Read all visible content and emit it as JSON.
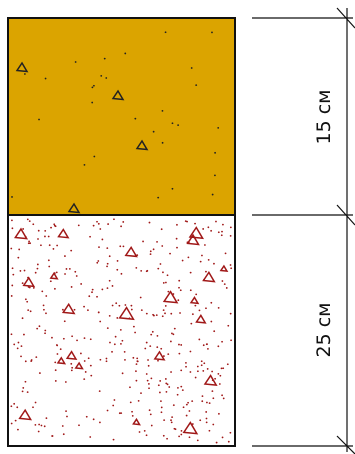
{
  "dimensions": [
    {
      "label": "15 см"
    },
    {
      "label": "25 см"
    }
  ]
}
